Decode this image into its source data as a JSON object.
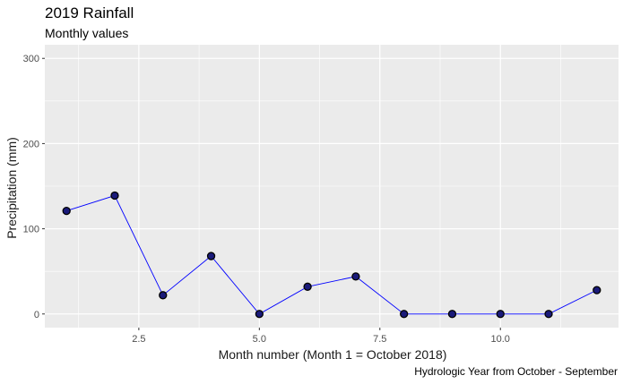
{
  "chart_data": {
    "type": "line",
    "title": "2019 Rainfall",
    "subtitle": "Monthly values",
    "xlabel": "Month number (Month 1 = October 2018)",
    "ylabel": "Precipitation (mm)",
    "caption": "Hydrologic Year from October - September",
    "xlim": [
      0.55,
      12.45
    ],
    "ylim": [
      -16,
      316
    ],
    "x_ticks": [
      2.5,
      5.0,
      7.5,
      10.0
    ],
    "x_tick_labels": [
      "2.5",
      "5.0",
      "7.5",
      "10.0"
    ],
    "y_ticks": [
      0,
      100,
      200,
      300
    ],
    "y_tick_labels": [
      "0",
      "100",
      "200",
      "300"
    ],
    "grid": true,
    "legend": "none",
    "series": [
      {
        "x": [
          1,
          2,
          3,
          4,
          5,
          6,
          7,
          8,
          9,
          10,
          11,
          12
        ],
        "values": [
          121,
          139,
          22,
          68,
          0,
          32,
          44,
          0,
          0,
          0,
          0,
          28
        ],
        "line_color": "#0000ff",
        "point_fill": "#1a1a7a",
        "point_stroke": "#000000"
      }
    ],
    "panel_background": "#ebebeb",
    "grid_color": "#ffffff"
  }
}
